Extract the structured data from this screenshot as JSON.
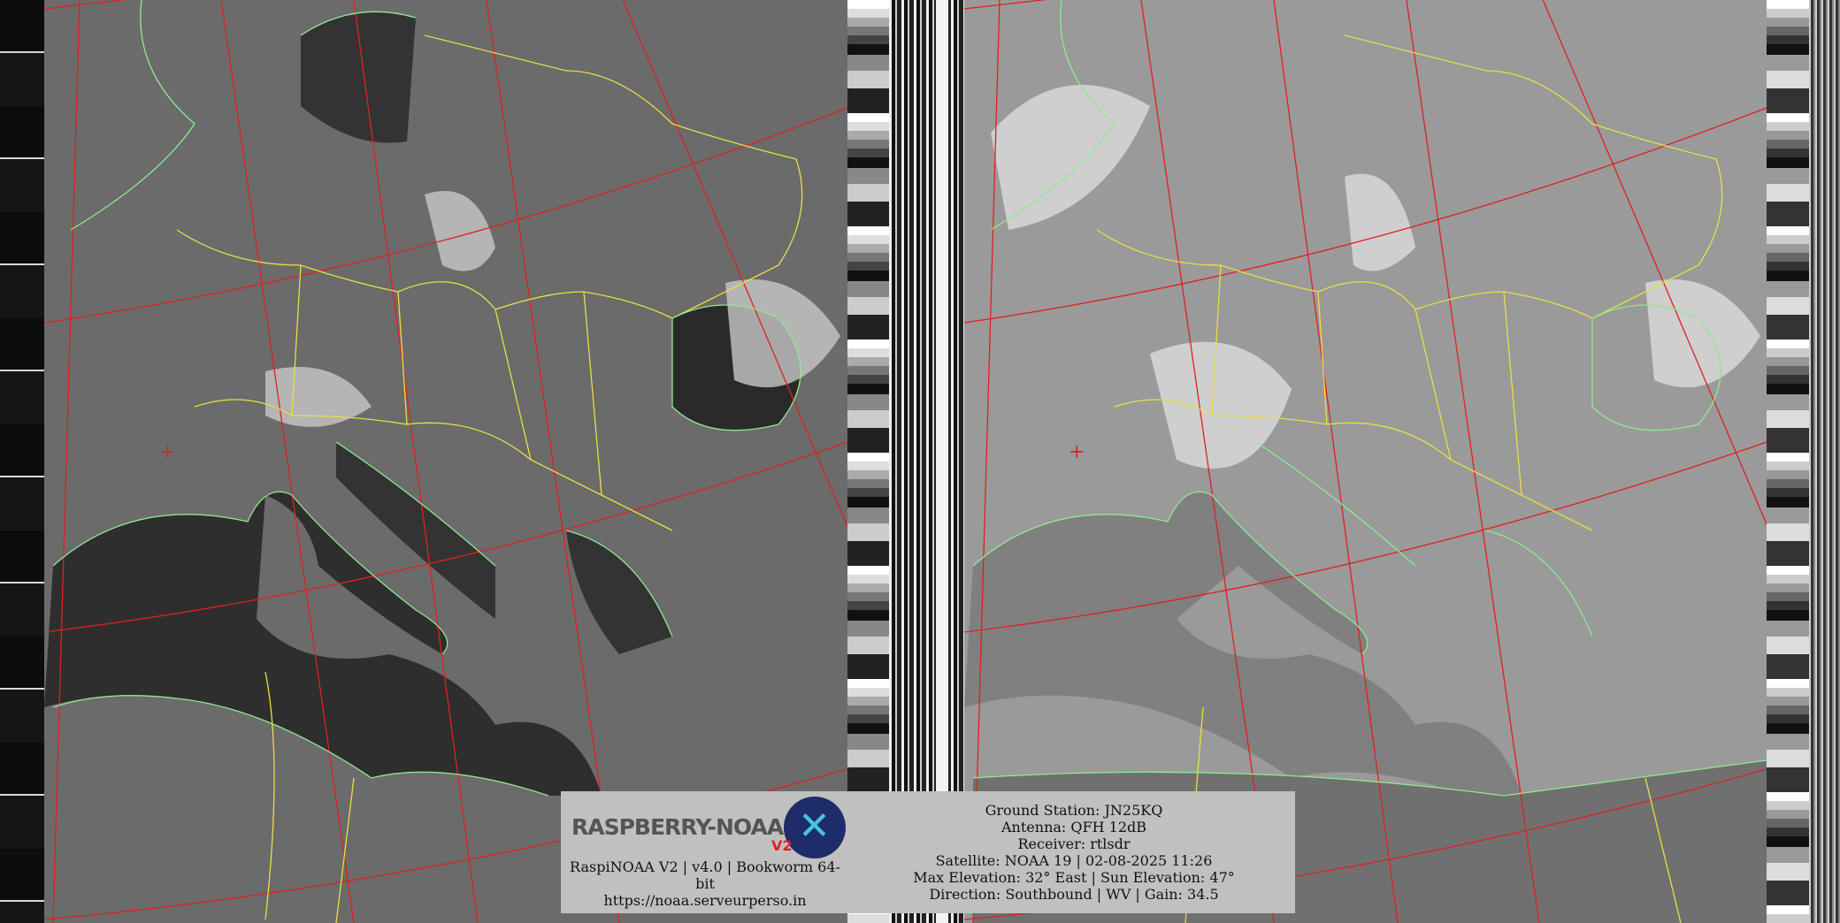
{
  "logo": {
    "text": "RASPBERRY-NOAA",
    "badge": "V2"
  },
  "footer_left": {
    "version_line": "RaspiNOAA V2 | v4.0 | Bookworm 64-bit",
    "url": "https://noaa.serveurperso.in"
  },
  "footer_right": {
    "ground_station": "Ground Station: JN25KQ",
    "antenna": "Antenna: QFH 12dB",
    "receiver": "Receiver: rtlsdr",
    "satellite": "Satellite: NOAA 19 | 02-08-2025 11:26",
    "elevation": "Max Elevation: 32° East | Sun Elevation: 47°",
    "direction": "Direction: Southbound | WV | Gain: 34.5"
  },
  "colors": {
    "graticule": "#e02020",
    "borders": "#e8e040",
    "coastlines": "#90e890",
    "info_box": "#c0c0c0"
  }
}
